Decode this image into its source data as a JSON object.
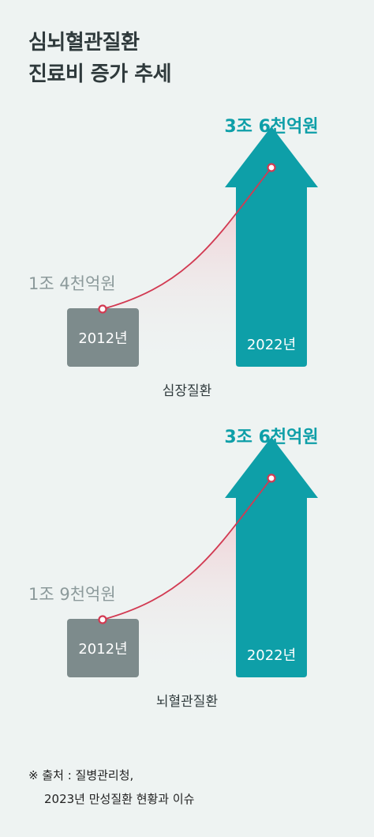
{
  "title_lines": [
    "심뇌혈관질환",
    "진료비 증가 추세"
  ],
  "colors": {
    "background": "#eef3f2",
    "box_2012": "#7d8b8c",
    "arrow_2022": "#0e9fa8",
    "highlight_text": "#0e9fa8",
    "curve": "#d23a52",
    "label_gray": "#8c9a9b"
  },
  "chart_data": [
    {
      "type": "bar",
      "title": "심장질환",
      "categories": [
        "2012년",
        "2022년"
      ],
      "values_labels": [
        "1조 4천억원",
        "3조 6천억원"
      ],
      "values": [
        14000,
        36000
      ],
      "unit": "억원"
    },
    {
      "type": "bar",
      "title": "뇌혈관질환",
      "categories": [
        "2012년",
        "2022년"
      ],
      "values_labels": [
        "1조 9천억원",
        "3조 6천억원"
      ],
      "values": [
        19000,
        36000
      ],
      "unit": "억원"
    }
  ],
  "source_lines": [
    "※ 출처 : 질병관리청,",
    "2023년 만성질환 현황과 이슈"
  ]
}
